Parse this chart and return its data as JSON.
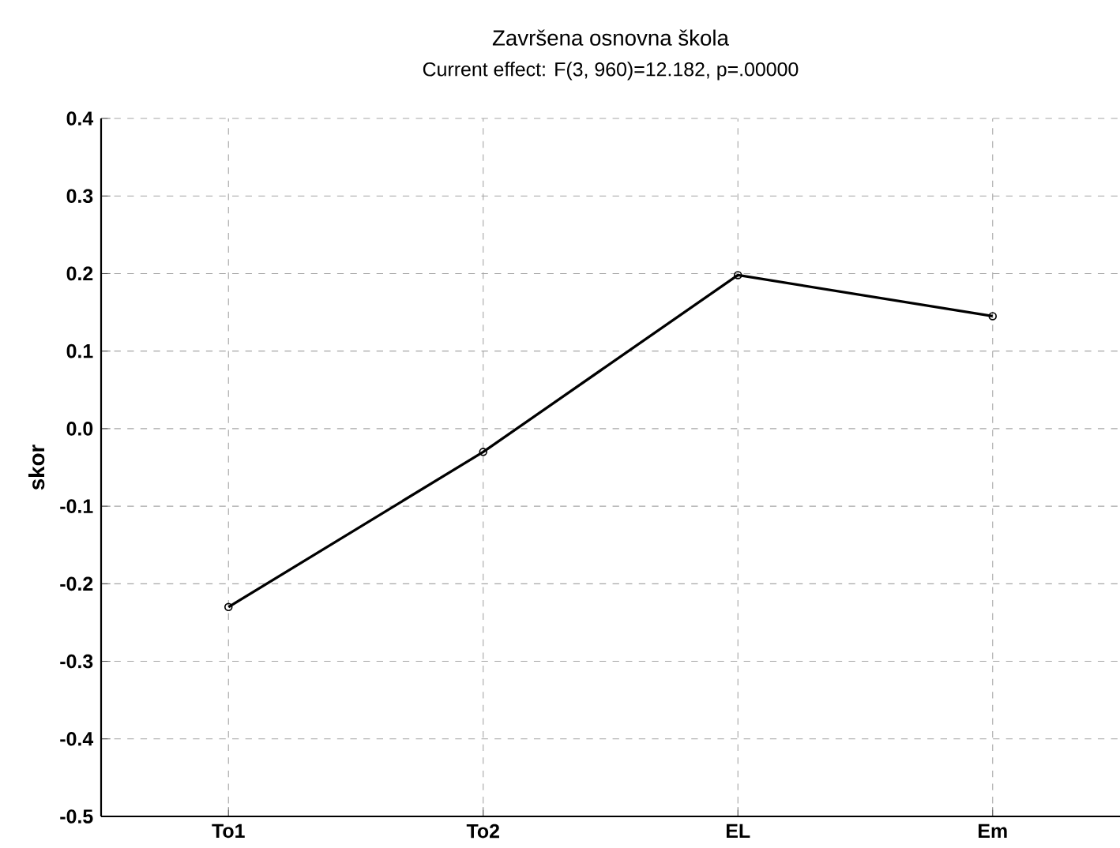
{
  "chart_data": {
    "type": "line",
    "title": "Završena osnovna škola",
    "subtitle": "Current effect: F(3, 960)=12.182, p=.00000",
    "ylabel": "skor",
    "categories": [
      "To1",
      "To2",
      "EL",
      "Em"
    ],
    "series": [
      {
        "color": "#000000",
        "values": [
          -0.23,
          -0.03,
          0.198,
          0.145
        ]
      }
    ],
    "ylim": [
      -0.5,
      0.4
    ],
    "yticks": [
      {
        "value": -0.5,
        "label": "-0.5"
      },
      {
        "value": -0.4,
        "label": "-0.4"
      },
      {
        "value": -0.3,
        "label": "-0.3"
      },
      {
        "value": -0.2,
        "label": "-0.2"
      },
      {
        "value": -0.1,
        "label": "-0.1"
      },
      {
        "value": 0,
        "label": "0.0"
      },
      {
        "value": 0.1,
        "label": "0.1"
      },
      {
        "value": 0.2,
        "label": "0.2"
      },
      {
        "value": 0.3,
        "label": "0.3"
      },
      {
        "value": 0.4,
        "label": "0.4"
      }
    ],
    "grid": true,
    "marker": "circle",
    "line_style": "solid"
  }
}
